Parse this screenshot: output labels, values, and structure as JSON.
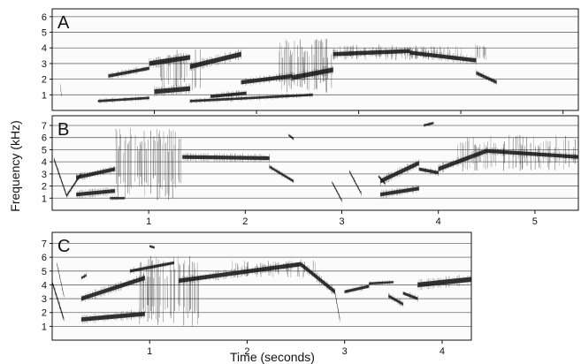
{
  "figure": {
    "ylabel": "Frequency (kHz)",
    "xlabel": "Time (seconds)"
  },
  "chart_data": [
    {
      "type": "heatmap",
      "panel": "A",
      "xlim": [
        0,
        5.15
      ],
      "ylim": [
        0,
        6.5
      ],
      "xticks": [
        1,
        2,
        3,
        4,
        5
      ],
      "yticks": [
        1,
        2,
        3,
        4,
        5,
        6
      ],
      "grid": true,
      "dark_traces": [
        {
          "x": [
            0.08,
            0.09
          ],
          "y": [
            1.6,
            1.0
          ],
          "w": 0.05
        },
        {
          "x": [
            0.45,
            0.95
          ],
          "y": [
            0.6,
            0.8
          ],
          "w": 0.15
        },
        {
          "x": [
            0.55,
            0.95
          ],
          "y": [
            2.2,
            2.7
          ],
          "w": 0.2
        },
        {
          "x": [
            0.95,
            1.35
          ],
          "y": [
            3.0,
            3.4
          ],
          "w": 0.3
        },
        {
          "x": [
            1.0,
            1.35
          ],
          "y": [
            1.2,
            1.4
          ],
          "w": 0.3
        },
        {
          "x": [
            1.35,
            1.85
          ],
          "y": [
            2.8,
            3.6
          ],
          "w": 0.3
        },
        {
          "x": [
            1.35,
            2.55
          ],
          "y": [
            0.6,
            1.0
          ],
          "w": 0.15
        },
        {
          "x": [
            1.55,
            1.9
          ],
          "y": [
            0.9,
            1.1
          ],
          "w": 0.2
        },
        {
          "x": [
            1.85,
            2.35
          ],
          "y": [
            1.8,
            2.2
          ],
          "w": 0.25
        },
        {
          "x": [
            2.35,
            2.75
          ],
          "y": [
            2.1,
            2.6
          ],
          "w": 0.3
        },
        {
          "x": [
            2.75,
            3.5
          ],
          "y": [
            3.6,
            3.8
          ],
          "w": 0.25
        },
        {
          "x": [
            3.5,
            4.15
          ],
          "y": [
            3.7,
            3.2
          ],
          "w": 0.25
        },
        {
          "x": [
            4.15,
            4.35
          ],
          "y": [
            2.4,
            1.8
          ],
          "w": 0.2
        }
      ],
      "noisy_regions": [
        {
          "x": [
            1.05,
            1.45
          ],
          "y": [
            1.2,
            3.9
          ],
          "density": 0.5
        },
        {
          "x": [
            2.2,
            2.75
          ],
          "y": [
            1.0,
            4.6
          ],
          "density": 0.6
        },
        {
          "x": [
            2.75,
            4.25
          ],
          "y": [
            3.2,
            4.2
          ],
          "density": 0.4
        }
      ]
    },
    {
      "type": "heatmap",
      "panel": "B",
      "xlim": [
        0,
        5.45
      ],
      "ylim": [
        0,
        7.8
      ],
      "xticks": [
        1,
        2,
        3,
        4,
        5
      ],
      "yticks": [
        1,
        2,
        3,
        4,
        5,
        6,
        7
      ],
      "grid": true,
      "dark_traces": [
        {
          "x": [
            0.02,
            0.15
          ],
          "y": [
            4.2,
            1.2
          ],
          "w": 0.25
        },
        {
          "x": [
            0.15,
            0.3
          ],
          "y": [
            1.2,
            3.0
          ],
          "w": 0.2
        },
        {
          "x": [
            0.25,
            0.65
          ],
          "y": [
            2.7,
            3.4
          ],
          "w": 0.3
        },
        {
          "x": [
            0.25,
            0.65
          ],
          "y": [
            1.3,
            1.6
          ],
          "w": 0.3
        },
        {
          "x": [
            0.6,
            0.75
          ],
          "y": [
            1.0,
            1.0
          ],
          "w": 0.1
        },
        {
          "x": [
            1.35,
            2.25
          ],
          "y": [
            4.4,
            4.3
          ],
          "w": 0.3
        },
        {
          "x": [
            2.25,
            2.5
          ],
          "y": [
            3.6,
            2.4
          ],
          "w": 0.2
        },
        {
          "x": [
            2.45,
            2.5
          ],
          "y": [
            6.2,
            5.9
          ],
          "w": 0.1
        },
        {
          "x": [
            2.9,
            3.0
          ],
          "y": [
            2.3,
            0.8
          ],
          "w": 0.15
        },
        {
          "x": [
            3.08,
            3.2
          ],
          "y": [
            3.2,
            1.4
          ],
          "w": 0.15
        },
        {
          "x": [
            3.4,
            3.8
          ],
          "y": [
            2.4,
            3.9
          ],
          "w": 0.35
        },
        {
          "x": [
            3.4,
            3.8
          ],
          "y": [
            1.3,
            1.8
          ],
          "w": 0.3
        },
        {
          "x": [
            3.38,
            3.45
          ],
          "y": [
            2.8,
            2.2
          ],
          "w": 0.15
        },
        {
          "x": [
            3.85,
            3.95
          ],
          "y": [
            7.0,
            7.2
          ],
          "w": 0.15
        },
        {
          "x": [
            3.8,
            4.0
          ],
          "y": [
            3.4,
            3.1
          ],
          "w": 0.25
        },
        {
          "x": [
            4.0,
            4.5
          ],
          "y": [
            3.4,
            4.9
          ],
          "w": 0.35
        },
        {
          "x": [
            4.5,
            5.45
          ],
          "y": [
            4.9,
            4.4
          ],
          "w": 0.3
        }
      ],
      "noisy_regions": [
        {
          "x": [
            0.65,
            1.35
          ],
          "y": [
            0.8,
            6.8
          ],
          "density": 0.7
        },
        {
          "x": [
            4.2,
            5.45
          ],
          "y": [
            3.2,
            6.2
          ],
          "density": 0.45
        }
      ]
    },
    {
      "type": "heatmap",
      "panel": "C",
      "xlim": [
        0,
        4.3
      ],
      "ylim": [
        0,
        7.8
      ],
      "xticks": [
        1,
        2,
        3,
        4
      ],
      "yticks": [
        1,
        2,
        3,
        4,
        5,
        6,
        7
      ],
      "grid": true,
      "dark_traces": [
        {
          "x": [
            0.0,
            0.12
          ],
          "y": [
            4.2,
            1.5
          ],
          "w": 0.25
        },
        {
          "x": [
            0.05,
            0.12
          ],
          "y": [
            5.5,
            3.2
          ],
          "w": 0.15
        },
        {
          "x": [
            0.3,
            0.35
          ],
          "y": [
            4.5,
            4.7
          ],
          "w": 0.1
        },
        {
          "x": [
            0.3,
            0.95
          ],
          "y": [
            3.0,
            4.5
          ],
          "w": 0.3
        },
        {
          "x": [
            0.3,
            0.95
          ],
          "y": [
            1.5,
            1.9
          ],
          "w": 0.3
        },
        {
          "x": [
            0.8,
            1.25
          ],
          "y": [
            5.0,
            5.6
          ],
          "w": 0.2
        },
        {
          "x": [
            1.0,
            1.05
          ],
          "y": [
            6.8,
            6.7
          ],
          "w": 0.1
        },
        {
          "x": [
            1.3,
            2.55
          ],
          "y": [
            4.3,
            5.5
          ],
          "w": 0.3
        },
        {
          "x": [
            2.55,
            2.9
          ],
          "y": [
            5.5,
            3.5
          ],
          "w": 0.3
        },
        {
          "x": [
            2.9,
            2.95
          ],
          "y": [
            3.5,
            1.5
          ],
          "w": 0.2
        },
        {
          "x": [
            3.0,
            3.25
          ],
          "y": [
            3.5,
            3.9
          ],
          "w": 0.2
        },
        {
          "x": [
            3.25,
            3.5
          ],
          "y": [
            4.1,
            4.2
          ],
          "w": 0.15
        },
        {
          "x": [
            3.45,
            3.6
          ],
          "y": [
            3.2,
            2.6
          ],
          "w": 0.2
        },
        {
          "x": [
            3.6,
            3.75
          ],
          "y": [
            3.4,
            3.0
          ],
          "w": 0.2
        },
        {
          "x": [
            3.75,
            4.3
          ],
          "y": [
            4.0,
            4.4
          ],
          "w": 0.35
        }
      ],
      "noisy_regions": [
        {
          "x": [
            0.9,
            1.5
          ],
          "y": [
            1.0,
            6.2
          ],
          "density": 0.65
        },
        {
          "x": [
            1.8,
            2.7
          ],
          "y": [
            4.5,
            5.8
          ],
          "density": 0.3
        }
      ]
    }
  ]
}
